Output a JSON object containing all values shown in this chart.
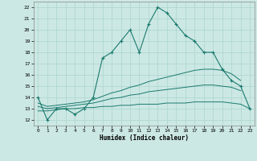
{
  "xlabel": "Humidex (Indice chaleur)",
  "x_values": [
    0,
    1,
    2,
    3,
    4,
    5,
    6,
    7,
    8,
    9,
    10,
    11,
    12,
    13,
    14,
    15,
    16,
    17,
    18,
    19,
    20,
    21,
    22,
    23
  ],
  "line1_y": [
    14,
    12,
    13,
    13,
    12.5,
    13,
    14,
    17.5,
    18,
    19,
    20,
    18,
    20.5,
    22,
    21.5,
    20.5,
    19.5,
    19,
    18,
    18,
    16.5,
    15.5,
    15,
    13
  ],
  "line2_y": [
    13.5,
    13.2,
    13.3,
    13.4,
    13.5,
    13.6,
    13.8,
    14.1,
    14.4,
    14.6,
    14.9,
    15.1,
    15.4,
    15.6,
    15.8,
    16.0,
    16.2,
    16.4,
    16.5,
    16.5,
    16.4,
    16.1,
    15.5,
    null
  ],
  "line3_y": [
    13.2,
    13.0,
    13.1,
    13.2,
    13.3,
    13.4,
    13.5,
    13.7,
    13.9,
    14.0,
    14.2,
    14.3,
    14.5,
    14.6,
    14.7,
    14.8,
    14.9,
    15.0,
    15.1,
    15.1,
    15.0,
    14.9,
    14.6,
    null
  ],
  "line4_y": [
    12.8,
    12.8,
    12.9,
    13.0,
    13.0,
    13.1,
    13.1,
    13.2,
    13.2,
    13.3,
    13.3,
    13.4,
    13.4,
    13.4,
    13.5,
    13.5,
    13.5,
    13.6,
    13.6,
    13.6,
    13.6,
    13.5,
    13.4,
    13.0
  ],
  "line_color": "#1a7a6e",
  "bg_color": "#cce8e4",
  "grid_color": "#aad4ce",
  "ylim": [
    11.5,
    22.5
  ],
  "xlim": [
    -0.5,
    23.5
  ],
  "yticks": [
    12,
    13,
    14,
    15,
    16,
    17,
    18,
    19,
    20,
    21,
    22
  ],
  "xticks": [
    0,
    1,
    2,
    3,
    4,
    5,
    6,
    7,
    8,
    9,
    10,
    11,
    12,
    13,
    14,
    15,
    16,
    17,
    18,
    19,
    20,
    21,
    22,
    23
  ]
}
